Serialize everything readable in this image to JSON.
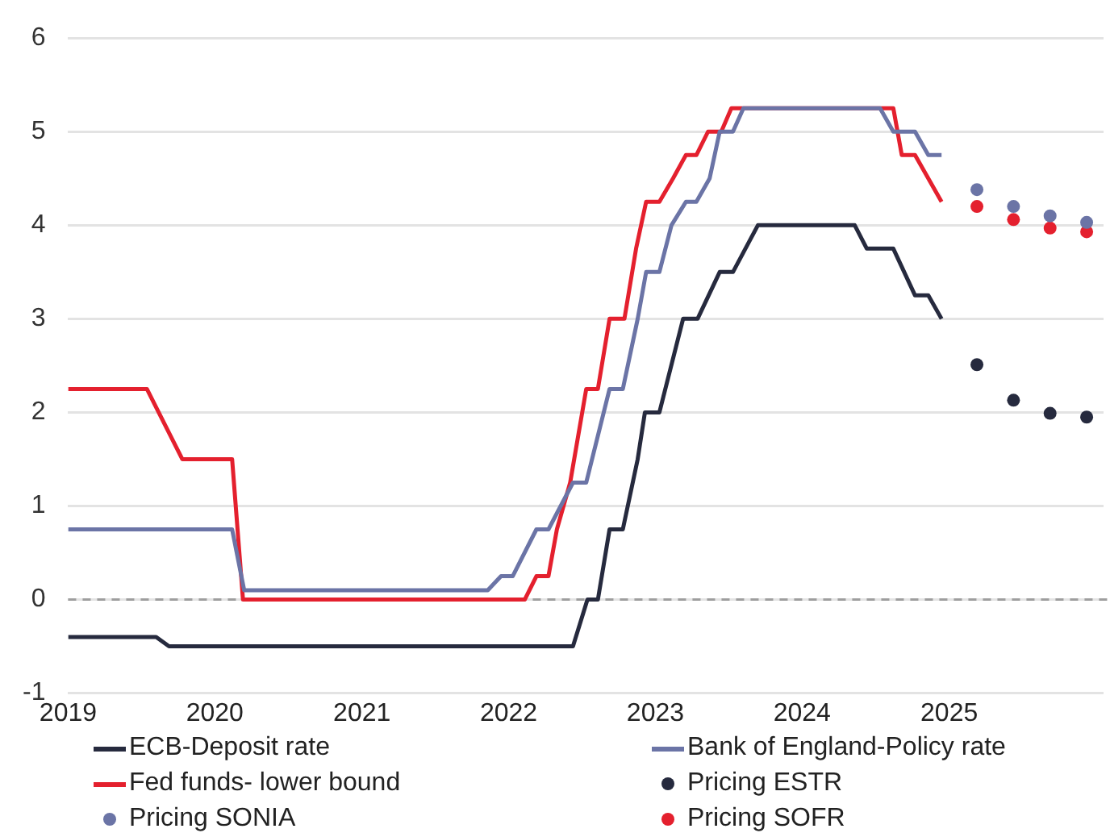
{
  "chart_data": {
    "type": "line",
    "xlim": [
      "2019-01-01",
      "2026-01-20"
    ],
    "xticks": [
      {
        "value": "2019",
        "label": "2019"
      },
      {
        "value": "2020",
        "label": "2020"
      },
      {
        "value": "2021",
        "label": "2021"
      },
      {
        "value": "2022",
        "label": "2022"
      },
      {
        "value": "2023",
        "label": "2023"
      },
      {
        "value": "2024",
        "label": "2024"
      },
      {
        "value": "2025",
        "label": "2025"
      }
    ],
    "ylim": [
      -1,
      6
    ],
    "yticks": [
      -1,
      0,
      1,
      2,
      3,
      4,
      5,
      6
    ],
    "grid": "y",
    "legend": "bottom",
    "line_style": "solid",
    "ref_lines": [
      {
        "axis": "y",
        "value": 0,
        "color": "#9e9e9e",
        "line_style": "dashed"
      }
    ],
    "series": [
      {
        "name": "ECB-Deposit rate",
        "color": "#262a3e",
        "marker": "none",
        "x": [
          "2019-01-01",
          "2019-08-08",
          "2019-09-09",
          "2022-06-10",
          "2022-07-16",
          "2022-08-11",
          "2022-09-09",
          "2022-10-12",
          "2022-11-18",
          "2022-12-06",
          "2023-01-11",
          "2023-03-11",
          "2023-04-16",
          "2023-06-10",
          "2023-07-13",
          "2023-09-13",
          "2024-05-11",
          "2024-06-10",
          "2024-08-15",
          "2024-10-08",
          "2024-11-10",
          "2024-12-13"
        ],
        "values": [
          -0.4,
          -0.4,
          -0.5,
          -0.5,
          0,
          0,
          0.75,
          0.75,
          1.5,
          2,
          2,
          3,
          3,
          3.5,
          3.5,
          4,
          4,
          3.75,
          3.75,
          3.25,
          3.25,
          3
        ]
      },
      {
        "name": "Bank of England-Policy rate",
        "color": "#6b74a6",
        "marker": "none",
        "x": [
          "2019-01-01",
          "2020-02-13",
          "2020-03-14",
          "2021-11-10",
          "2021-12-13",
          "2022-01-11",
          "2022-03-11",
          "2022-04-10",
          "2022-06-10",
          "2022-07-13",
          "2022-09-09",
          "2022-10-12",
          "2022-11-18",
          "2022-12-09",
          "2023-01-11",
          "2023-02-10",
          "2023-03-18",
          "2023-04-13",
          "2023-05-16",
          "2023-06-10",
          "2023-07-13",
          "2023-08-08",
          "2024-07-13",
          "2024-08-15",
          "2024-10-08",
          "2024-11-10",
          "2024-12-13"
        ],
        "values": [
          0.75,
          0.75,
          0.1,
          0.1,
          0.25,
          0.25,
          0.75,
          0.75,
          1.25,
          1.25,
          2.25,
          2.25,
          3,
          3.5,
          3.5,
          4,
          4.25,
          4.25,
          4.5,
          5,
          5,
          5.25,
          5.25,
          5,
          5,
          4.75,
          4.75
        ]
      },
      {
        "name": "Fed funds- lower bound",
        "color": "#e4202e",
        "marker": "none",
        "x": [
          "2019-01-01",
          "2019-07-16",
          "2019-10-12",
          "2020-02-13",
          "2020-03-11",
          "2022-02-10",
          "2022-03-11",
          "2022-04-10",
          "2022-05-01",
          "2022-06-03",
          "2022-07-13",
          "2022-08-11",
          "2022-09-09",
          "2022-10-16",
          "2022-11-14",
          "2022-12-09",
          "2023-01-11",
          "2023-02-14",
          "2023-03-18",
          "2023-04-13",
          "2023-05-12",
          "2023-06-14",
          "2023-07-09",
          "2024-08-15",
          "2024-09-05",
          "2024-10-08",
          "2024-12-13"
        ],
        "values": [
          2.25,
          2.25,
          1.5,
          1.5,
          0,
          0,
          0.25,
          0.25,
          0.75,
          1.25,
          2.25,
          2.25,
          3,
          3,
          3.75,
          4.25,
          4.25,
          4.5,
          4.75,
          4.75,
          5,
          5,
          5.25,
          5.25,
          4.75,
          4.75,
          4.25
        ]
      },
      {
        "name": "Pricing ESTR",
        "color": "#262a3e",
        "type": "scatter",
        "marker": "circle",
        "x": [
          "2025-03-11",
          "2025-06-10",
          "2025-09-09",
          "2025-12-09"
        ],
        "values": [
          2.51,
          2.13,
          1.99,
          1.95
        ]
      },
      {
        "name": "Pricing SONIA",
        "color": "#6b74a6",
        "type": "scatter",
        "marker": "circle",
        "x": [
          "2025-03-11",
          "2025-06-10",
          "2025-09-09",
          "2025-12-09"
        ],
        "values": [
          4.38,
          4.2,
          4.1,
          4.03
        ]
      },
      {
        "name": "Pricing SOFR",
        "color": "#e4202e",
        "type": "scatter",
        "marker": "circle",
        "x": [
          "2025-03-11",
          "2025-06-10",
          "2025-09-09",
          "2025-12-09"
        ],
        "values": [
          4.2,
          4.06,
          3.97,
          3.93
        ]
      }
    ]
  }
}
